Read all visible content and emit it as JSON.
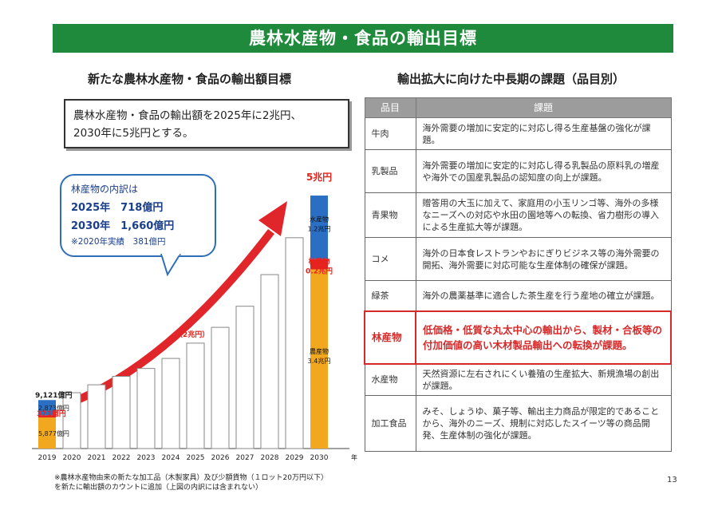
{
  "header": {
    "title": "農林水産物・食品の輸出目標"
  },
  "left": {
    "title": "新たな農林水産物・食品の輸出額目標",
    "goal_line1": "農林水産物・食品の輸出額を2025年に2兆円、",
    "goal_line2": "2030年に5兆円とする。",
    "bubble": {
      "heading": "林産物の内訳は",
      "line_2025": "2025年　718億円",
      "line_2030": "2030年　1,660億円",
      "note": "※2020年実績　381億円"
    },
    "footnote_line1": "※農林水産物由来の新たな加工品（木製家具）及び少額貨物（１ロット20万円以下）",
    "footnote_line2": "を新たに輸出額のカウントに追加（上図の内訳には含まれない）"
  },
  "chart_data": {
    "type": "bar",
    "categories": [
      "2019",
      "2020",
      "2021",
      "2022",
      "2023",
      "2024",
      "2025",
      "2026",
      "2027",
      "2028",
      "2029",
      "2030"
    ],
    "x_unit_label": "年",
    "colors": {
      "marine": "#2a6fc4",
      "forest": "#e6231e",
      "agri": "#f1a81f",
      "outline": "#888888",
      "arrow": "#e0262a"
    },
    "bar_2019": {
      "total_label": "9,121億円",
      "marine_label": "2,873億円",
      "forest_label": "371億円",
      "agri_label": "5,877億円"
    },
    "annotation_2025": "（2兆円）",
    "bar_2030": {
      "total_label": "5兆円",
      "marine_label_1": "水産物",
      "marine_label_2": "1.2兆円",
      "forest_label_1": "林産物",
      "forest_label_2": "0.2兆円",
      "agri_label_1": "農産物",
      "agri_label_2": "3.4兆円"
    },
    "series": [
      {
        "name": "水産物",
        "values": [
          0.29,
          null,
          null,
          null,
          null,
          null,
          null,
          null,
          null,
          null,
          null,
          1.2
        ]
      },
      {
        "name": "林産物",
        "values": [
          0.04,
          null,
          null,
          null,
          null,
          null,
          null,
          null,
          null,
          null,
          null,
          0.2
        ]
      },
      {
        "name": "農産物",
        "values": [
          0.59,
          null,
          null,
          null,
          null,
          null,
          null,
          null,
          null,
          null,
          null,
          3.4
        ]
      }
    ],
    "totals": [
      0.91,
      1.06,
      1.21,
      1.37,
      1.52,
      1.71,
      2.0,
      2.3,
      2.7,
      3.3,
      4.0,
      5.0
    ],
    "ylim": [
      0,
      5.3
    ]
  },
  "table": {
    "header_item": "品目",
    "header_issue": "課題",
    "rows": [
      {
        "item": "牛肉",
        "issue": "海外需要の増加に安定的に対応し得る生産基盤の強化が課題。"
      },
      {
        "item": "乳製品",
        "issue": "海外需要の増加に安定的に対応し得る乳製品の原料乳の増産や海外での国産乳製品の認知度の向上が課題。"
      },
      {
        "item": "青果物",
        "issue": "贈答用の大玉に加えて、家庭用の小玉リンゴ等、海外の多様なニーズへの対応や水田の園地等への転換、省力樹形の導入による生産拡大等が課題。"
      },
      {
        "item": "コメ",
        "issue": "海外の日本食レストランやおにぎりビジネス等の海外需要の開拓、海外需要に対応可能な生産体制の確保が課題。"
      },
      {
        "item": "緑茶",
        "issue": "海外の農薬基準に適合した茶生産を行う産地の確立が課題。"
      },
      {
        "item": "林産物",
        "issue": "低価格・低質な丸太中心の輸出から、製材・合板等の付加価値の高い木材製品輸出への転換が課題。"
      },
      {
        "item": "水産物",
        "issue": "天然資源に左右されにくい養殖の生産拡大、新規漁場の創出が課題。"
      },
      {
        "item": "加工食品",
        "issue": "みそ、しょうゆ、菓子等、輸出主力商品が限定的であることから、海外のニーズ、規制に対応したスイーツ等の商品開発、生産体制の強化が課題。"
      }
    ]
  },
  "page_number": "13"
}
